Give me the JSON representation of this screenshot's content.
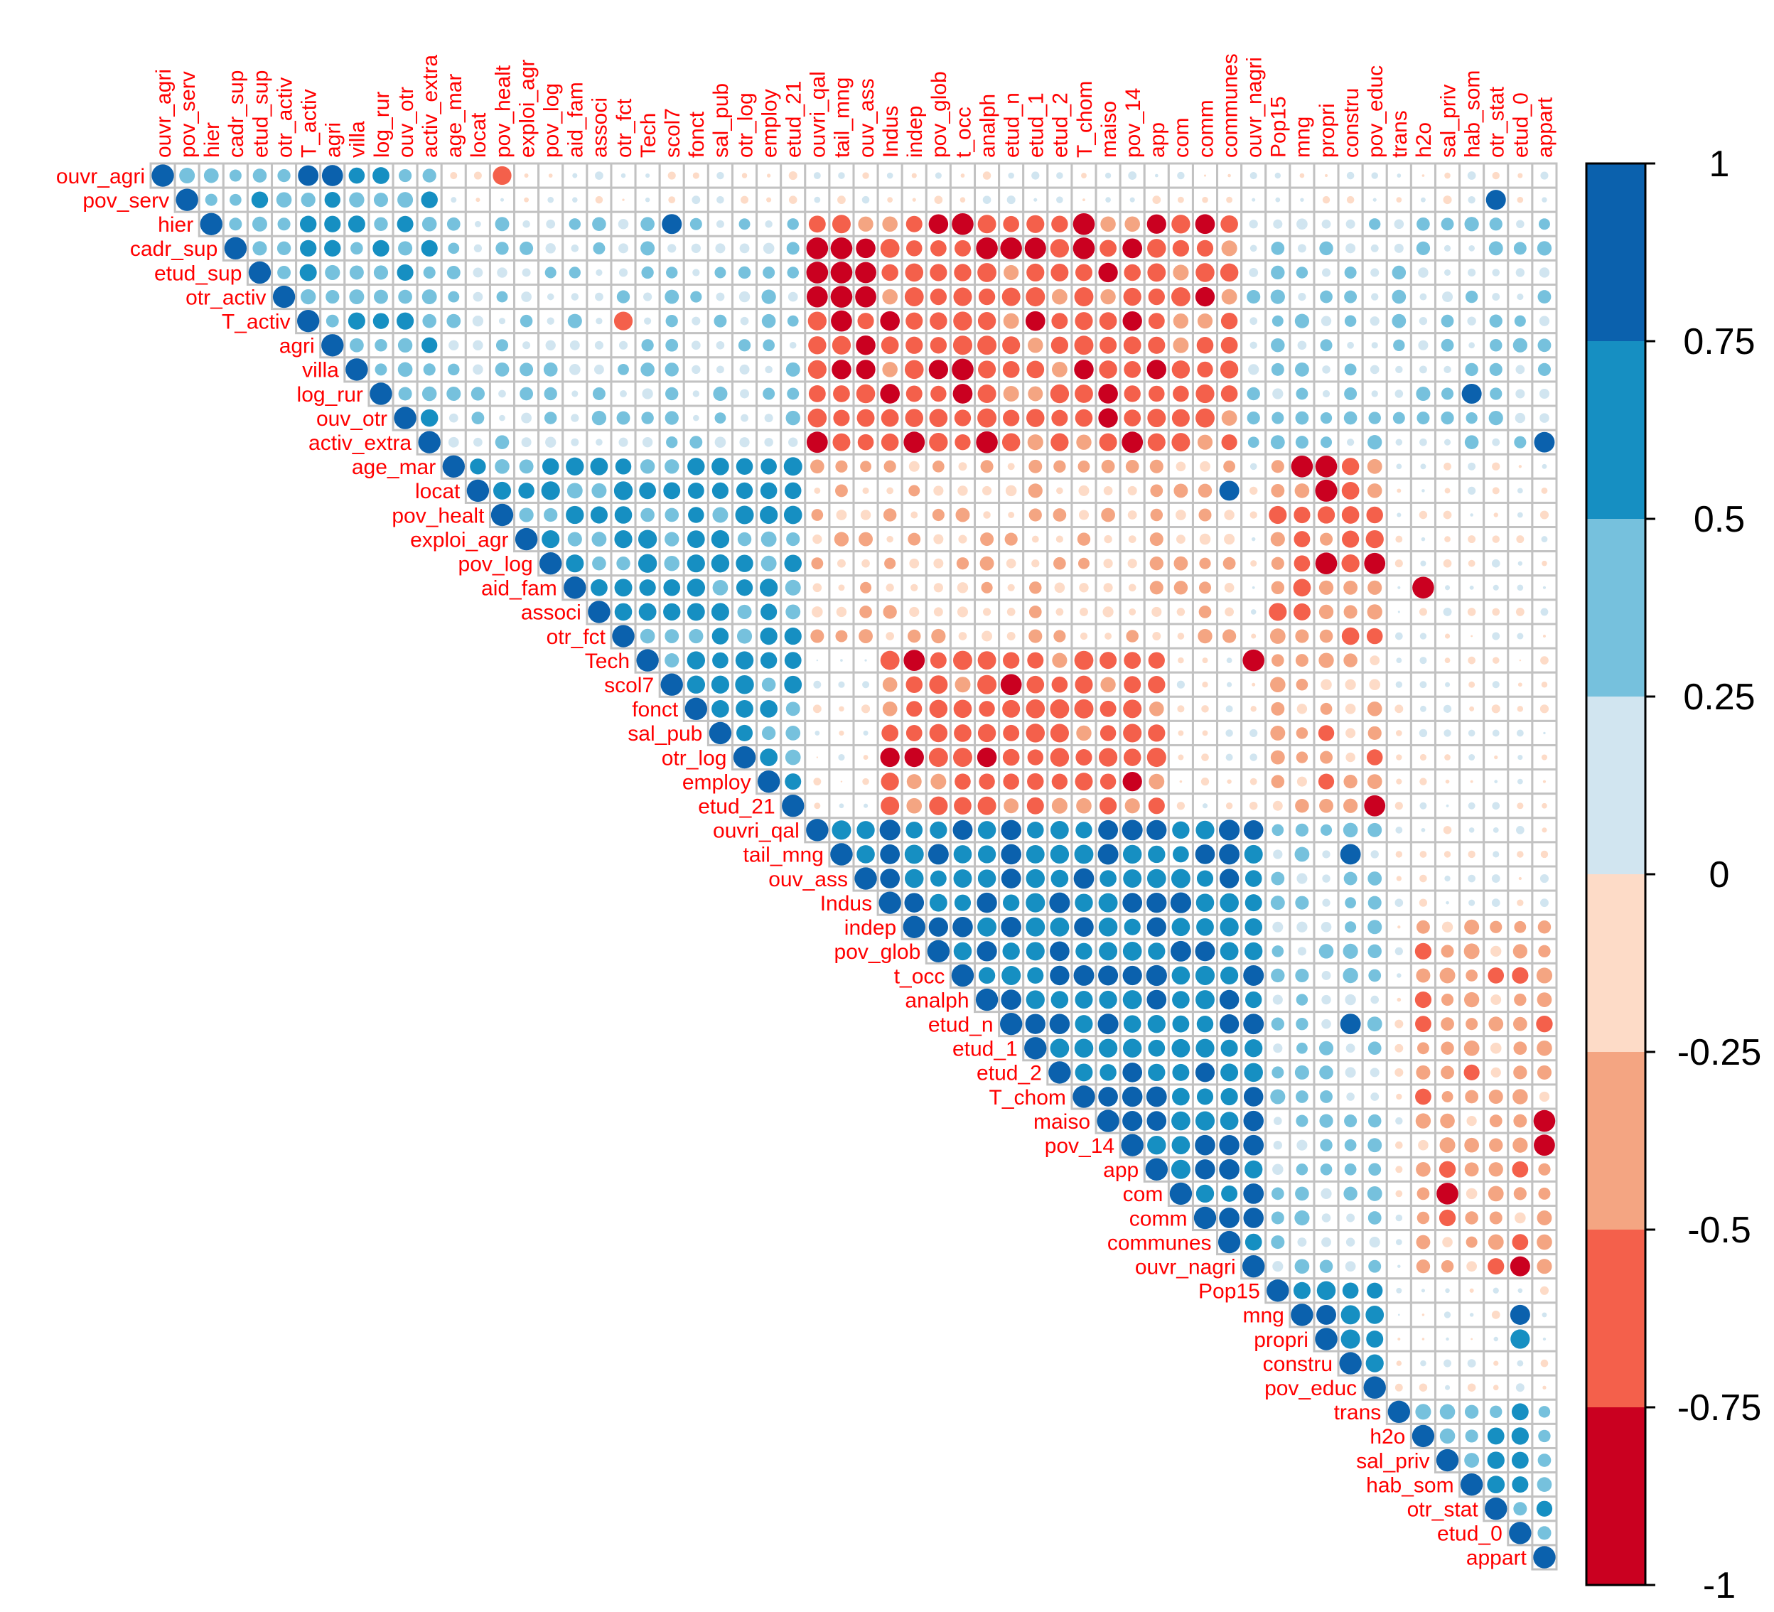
{
  "chart_data": {
    "type": "heatmap",
    "subtype": "correlogram-upper-triangle-circles",
    "title": "",
    "variables": [
      "ouvr_agri",
      "pov_serv",
      "hier",
      "cadr_sup",
      "etud_sup",
      "otr_activ",
      "T_activ",
      "agri",
      "villa",
      "log_rur",
      "ouv_otr",
      "activ_extra",
      "age_mar",
      "locat",
      "pov_healt",
      "exploi_agr",
      "pov_log",
      "aid_fam",
      "associ",
      "otr_fct",
      "Tech",
      "scol7",
      "fonct",
      "sal_pub",
      "otr_log",
      "employ",
      "etud_21",
      "ouvri_qal",
      "tail_mng",
      "ouv_ass",
      "Indus",
      "indep",
      "pov_glob",
      "t_occ",
      "analph",
      "etud_n",
      "etud_1",
      "etud_2",
      "T_chom",
      "maiso",
      "pov_14",
      "app",
      "com",
      "comm",
      "communes",
      "ouvr_nagri",
      "Pop15",
      "mng",
      "propri",
      "constru",
      "pov_educ",
      "trans",
      "h2o",
      "sal_priv",
      "hab_som",
      "otr_stat",
      "etud_0",
      "appart"
    ],
    "color_scale": {
      "breaks": [
        -1,
        -0.75,
        -0.5,
        -0.25,
        0,
        0.25,
        0.5,
        0.75,
        1
      ],
      "tick_labels": [
        "1",
        "0.75",
        "0.5",
        "0.25",
        "0",
        "-0.25",
        "-0.5",
        "-0.75",
        "-1"
      ],
      "colors_low_to_high": [
        "#ca0020",
        "#f4604b",
        "#f4a582",
        "#fddbc7",
        "#d1e5f0",
        "#76c1dd",
        "#168fc2",
        "#0b61ad"
      ]
    },
    "blocks": [
      {
        "rows": [
          0,
          11
        ],
        "cols": [
          0,
          11
        ],
        "r": 0.45
      },
      {
        "rows": [
          12,
          26
        ],
        "cols": [
          12,
          26
        ],
        "r": 0.55
      },
      {
        "rows": [
          27,
          45
        ],
        "cols": [
          27,
          45
        ],
        "r": 0.7
      },
      {
        "rows": [
          46,
          50
        ],
        "cols": [
          46,
          50
        ],
        "r": 0.65
      },
      {
        "rows": [
          51,
          57
        ],
        "cols": [
          51,
          57
        ],
        "r": 0.45
      },
      {
        "rows": [
          2,
          11
        ],
        "cols": [
          27,
          44
        ],
        "r": -0.62
      },
      {
        "rows": [
          20,
          26
        ],
        "cols": [
          30,
          41
        ],
        "r": -0.6
      },
      {
        "rows": [
          12,
          19
        ],
        "cols": [
          46,
          50
        ],
        "r": -0.5
      },
      {
        "rows": [
          20,
          26
        ],
        "cols": [
          46,
          50
        ],
        "r": -0.35
      },
      {
        "rows": [
          31,
          45
        ],
        "cols": [
          52,
          57
        ],
        "r": -0.38
      },
      {
        "rows": [
          12,
          19
        ],
        "cols": [
          27,
          44
        ],
        "r": -0.25
      },
      {
        "rows": [
          2,
          11
        ],
        "cols": [
          12,
          26
        ],
        "r": 0.25
      },
      {
        "rows": [
          27,
          45
        ],
        "cols": [
          46,
          50
        ],
        "r": 0.3
      },
      {
        "rows": [
          2,
          11
        ],
        "cols": [
          45,
          57
        ],
        "r": 0.25
      }
    ],
    "cells": [
      {
        "i": 0,
        "j": 14,
        "r": -0.7
      },
      {
        "i": 0,
        "j": 7,
        "r": 0.9
      },
      {
        "i": 0,
        "j": 6,
        "r": 0.85
      },
      {
        "i": 1,
        "j": 55,
        "r": 0.8
      },
      {
        "i": 2,
        "j": 21,
        "r": 0.8
      },
      {
        "i": 2,
        "j": 33,
        "r": -0.95
      },
      {
        "i": 2,
        "j": 38,
        "r": -0.95
      },
      {
        "i": 3,
        "j": 27,
        "r": -0.95
      },
      {
        "i": 3,
        "j": 28,
        "r": -0.95
      },
      {
        "i": 3,
        "j": 34,
        "r": -0.95
      },
      {
        "i": 3,
        "j": 35,
        "r": -0.95
      },
      {
        "i": 3,
        "j": 36,
        "r": -0.92
      },
      {
        "i": 3,
        "j": 38,
        "r": -0.95
      },
      {
        "i": 4,
        "j": 27,
        "r": -0.95
      },
      {
        "i": 4,
        "j": 28,
        "r": -0.95
      },
      {
        "i": 4,
        "j": 29,
        "r": -0.9
      },
      {
        "i": 5,
        "j": 27,
        "r": -0.9
      },
      {
        "i": 5,
        "j": 28,
        "r": -0.95
      },
      {
        "i": 5,
        "j": 29,
        "r": -0.9
      },
      {
        "i": 6,
        "j": 28,
        "r": -0.9
      },
      {
        "i": 6,
        "j": 19,
        "r": -0.7
      },
      {
        "i": 8,
        "j": 33,
        "r": -0.95
      },
      {
        "i": 9,
        "j": 54,
        "r": 0.8
      },
      {
        "i": 11,
        "j": 27,
        "r": -0.9
      },
      {
        "i": 11,
        "j": 31,
        "r": -0.9
      },
      {
        "i": 11,
        "j": 34,
        "r": -0.95
      },
      {
        "i": 11,
        "j": 40,
        "r": -0.9
      },
      {
        "i": 11,
        "j": 57,
        "r": 0.85
      },
      {
        "i": 12,
        "j": 47,
        "r": -0.95
      },
      {
        "i": 12,
        "j": 48,
        "r": -0.95
      },
      {
        "i": 13,
        "j": 48,
        "r": -0.98
      },
      {
        "i": 13,
        "j": 44,
        "r": 0.8
      },
      {
        "i": 16,
        "j": 48,
        "r": -0.95
      },
      {
        "i": 16,
        "j": 50,
        "r": -0.9
      },
      {
        "i": 17,
        "j": 52,
        "r": -0.95
      },
      {
        "i": 20,
        "j": 45,
        "r": -0.95
      },
      {
        "i": 20,
        "j": 31,
        "r": -0.9
      },
      {
        "i": 21,
        "j": 35,
        "r": -0.9
      },
      {
        "i": 26,
        "j": 50,
        "r": -0.9
      },
      {
        "i": 28,
        "j": 49,
        "r": 0.85
      },
      {
        "i": 35,
        "j": 49,
        "r": 0.85
      },
      {
        "i": 39,
        "j": 57,
        "r": -0.95
      },
      {
        "i": 40,
        "j": 57,
        "r": -0.9
      },
      {
        "i": 42,
        "j": 53,
        "r": -0.95
      },
      {
        "i": 45,
        "j": 56,
        "r": -0.8
      },
      {
        "i": 47,
        "j": 56,
        "r": 0.8
      },
      {
        "i": 48,
        "j": 56,
        "r": 0.75
      }
    ]
  }
}
